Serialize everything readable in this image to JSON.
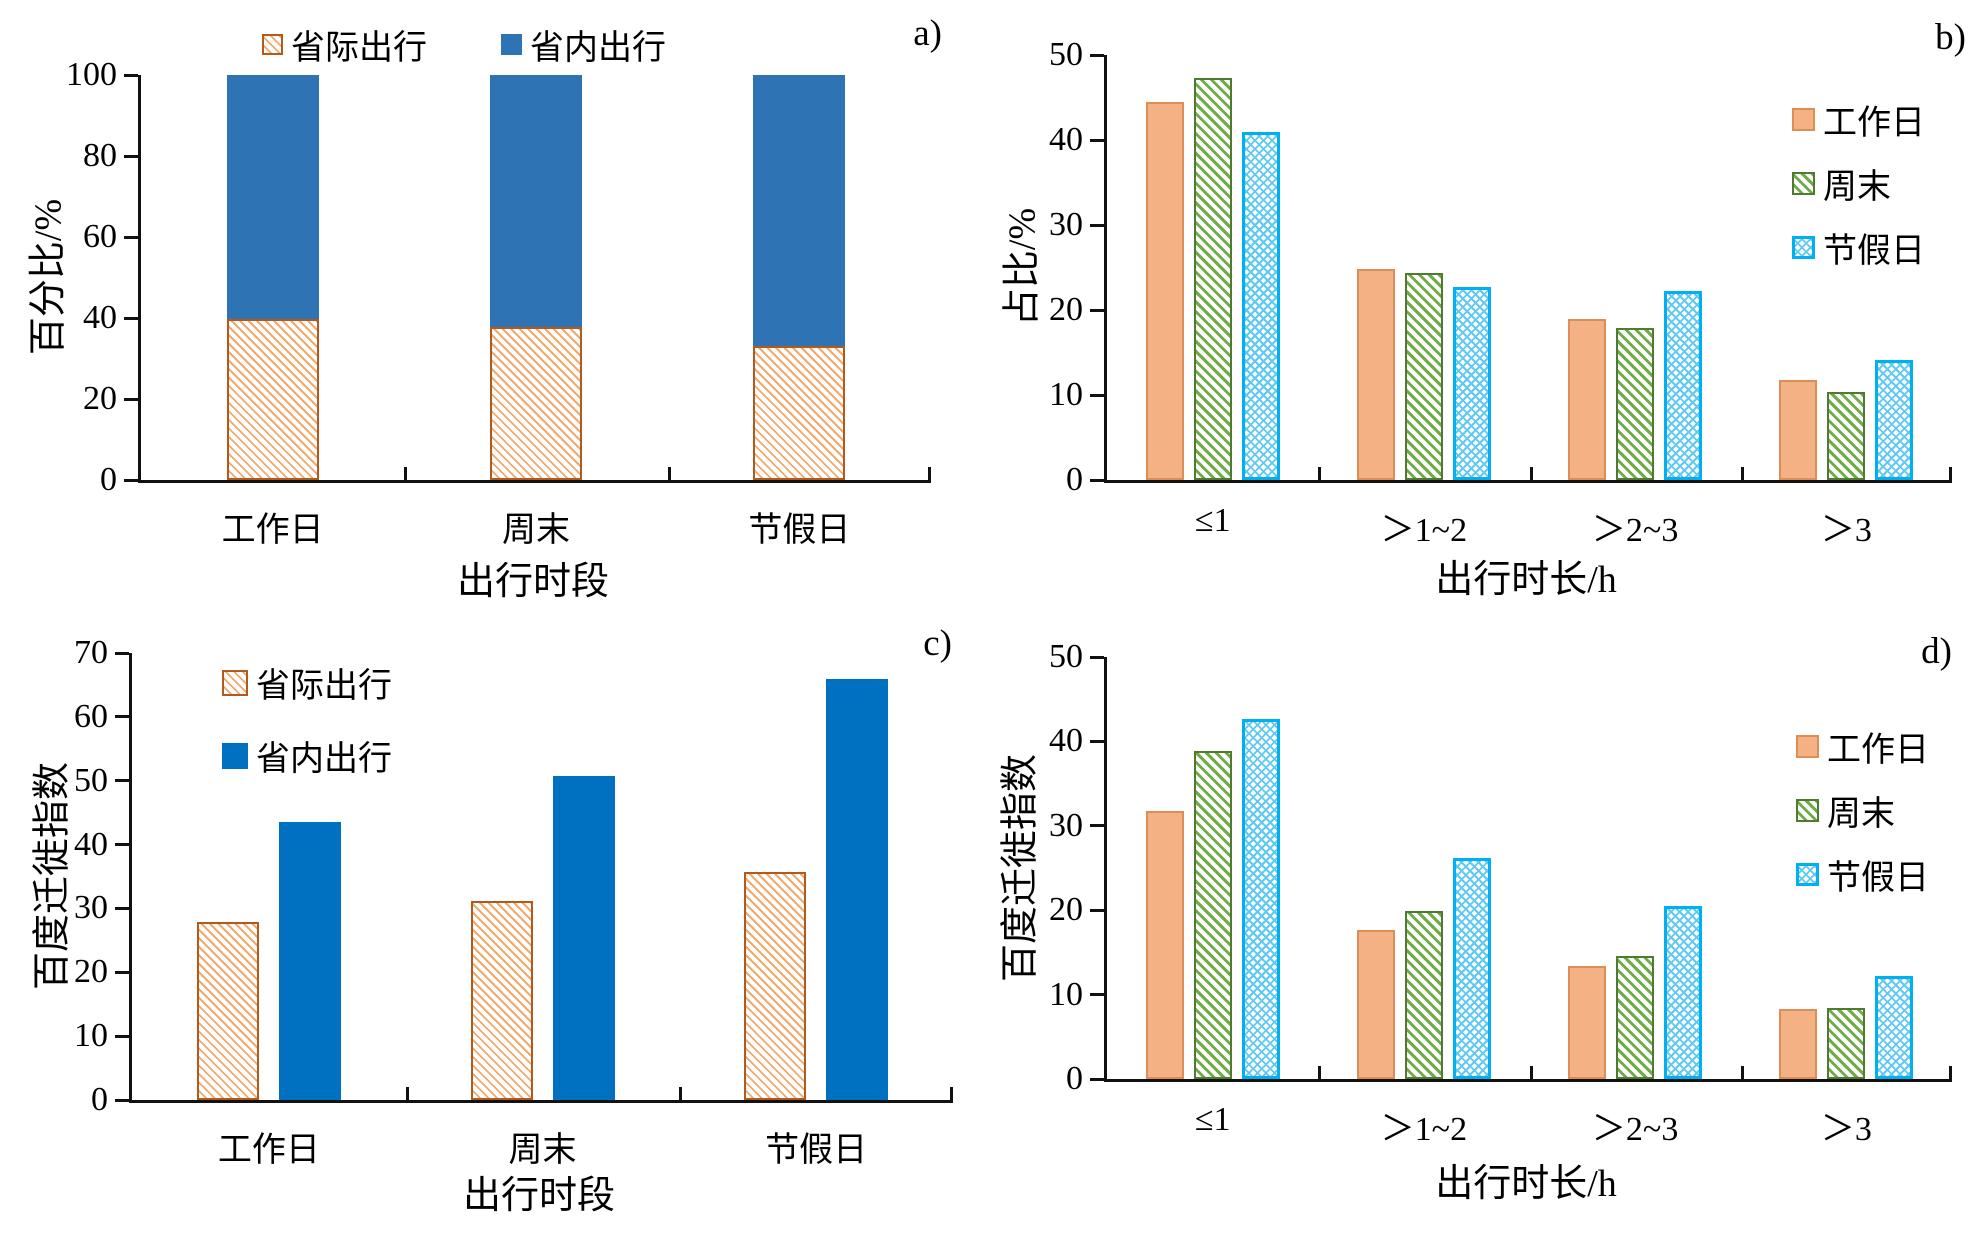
{
  "colors": {
    "inter_border": "#B2591D",
    "inter_line": "#F2A96B",
    "intra_a": "#2E74B5",
    "intra_c": "#0070C0",
    "work_fill": "#F4B183",
    "work_border": "#DD8D56",
    "weekend_border": "#4E7B2F",
    "weekend_line": "#6FAC47",
    "holiday_border": "#00B0F0",
    "holiday_line": "#5FC8F3",
    "axis": "#111111"
  },
  "chart_data": [
    {
      "type": "bar",
      "stacked": true,
      "corner_label": "a)",
      "ylabel": "百分比/%",
      "xlabel": "出行时段",
      "categories": [
        "工作日",
        "周末",
        "节假日"
      ],
      "ylim": [
        0,
        100
      ],
      "ytick_step": 20,
      "ytick_labels": [
        "0",
        "20",
        "40",
        "60",
        "80",
        "100"
      ],
      "grid": false,
      "legend_position": "top-center-horizontal",
      "legend": [
        {
          "label": "省际出行",
          "pattern": "inter"
        },
        {
          "label": "省内出行",
          "pattern": "intra-a"
        }
      ],
      "series": [
        {
          "name": "省际出行",
          "pattern": "inter",
          "values": [
            39.7,
            37.9,
            33.0
          ]
        },
        {
          "name": "省内出行",
          "pattern": "intra-a",
          "values": [
            60.3,
            62.1,
            67.0
          ]
        }
      ]
    },
    {
      "type": "bar",
      "stacked": false,
      "corner_label": "b)",
      "ylabel": "占比/%",
      "xlabel": "出行时长/h",
      "categories": [
        "≤1",
        "＞1~2",
        "＞2~3",
        "＞3"
      ],
      "ylim": [
        0,
        50
      ],
      "ytick_step": 10,
      "ytick_labels": [
        "0",
        "10",
        "20",
        "30",
        "40",
        "50"
      ],
      "grid": false,
      "legend_position": "right-vertical",
      "legend": [
        {
          "label": "工作日",
          "pattern": "work"
        },
        {
          "label": "周末",
          "pattern": "weekend"
        },
        {
          "label": "节假日",
          "pattern": "holiday"
        }
      ],
      "series": [
        {
          "name": "工作日",
          "pattern": "work",
          "values": [
            44.5,
            24.8,
            18.9,
            11.8
          ]
        },
        {
          "name": "周末",
          "pattern": "weekend",
          "values": [
            47.3,
            24.3,
            17.9,
            10.3
          ]
        },
        {
          "name": "节假日",
          "pattern": "holiday",
          "values": [
            41.0,
            22.7,
            22.2,
            14.1
          ]
        }
      ]
    },
    {
      "type": "bar",
      "stacked": false,
      "corner_label": "c)",
      "ylabel": "百度迁徙指数",
      "xlabel": "出行时段",
      "categories": [
        "工作日",
        "周末",
        "节假日"
      ],
      "ylim": [
        0,
        70
      ],
      "ytick_step": 10,
      "ytick_labels": [
        "0",
        "10",
        "20",
        "30",
        "40",
        "50",
        "60",
        "70"
      ],
      "grid": false,
      "legend_position": "upper-left-vertical",
      "legend": [
        {
          "label": "省际出行",
          "pattern": "inter"
        },
        {
          "label": "省内出行",
          "pattern": "intra-c"
        }
      ],
      "series": [
        {
          "name": "省际出行",
          "pattern": "inter",
          "values": [
            27.8,
            31.2,
            35.7
          ]
        },
        {
          "name": "省内出行",
          "pattern": "intra-c",
          "values": [
            43.5,
            50.8,
            65.9
          ]
        }
      ]
    },
    {
      "type": "bar",
      "stacked": false,
      "corner_label": "d)",
      "ylabel": "百度迁徙指数",
      "xlabel": "出行时长/h",
      "categories": [
        "≤1",
        "＞1~2",
        "＞2~3",
        "＞3"
      ],
      "ylim": [
        0,
        50
      ],
      "ytick_step": 10,
      "ytick_labels": [
        "0",
        "10",
        "20",
        "30",
        "40",
        "50"
      ],
      "grid": false,
      "legend_position": "right-vertical",
      "legend": [
        {
          "label": "工作日",
          "pattern": "work"
        },
        {
          "label": "周末",
          "pattern": "weekend"
        },
        {
          "label": "节假日",
          "pattern": "holiday"
        }
      ],
      "series": [
        {
          "name": "工作日",
          "pattern": "work",
          "values": [
            31.7,
            17.6,
            13.4,
            8.3
          ]
        },
        {
          "name": "周末",
          "pattern": "weekend",
          "values": [
            38.9,
            19.9,
            14.6,
            8.4
          ]
        },
        {
          "name": "节假日",
          "pattern": "holiday",
          "values": [
            42.7,
            26.2,
            20.5,
            12.2
          ]
        }
      ]
    }
  ]
}
